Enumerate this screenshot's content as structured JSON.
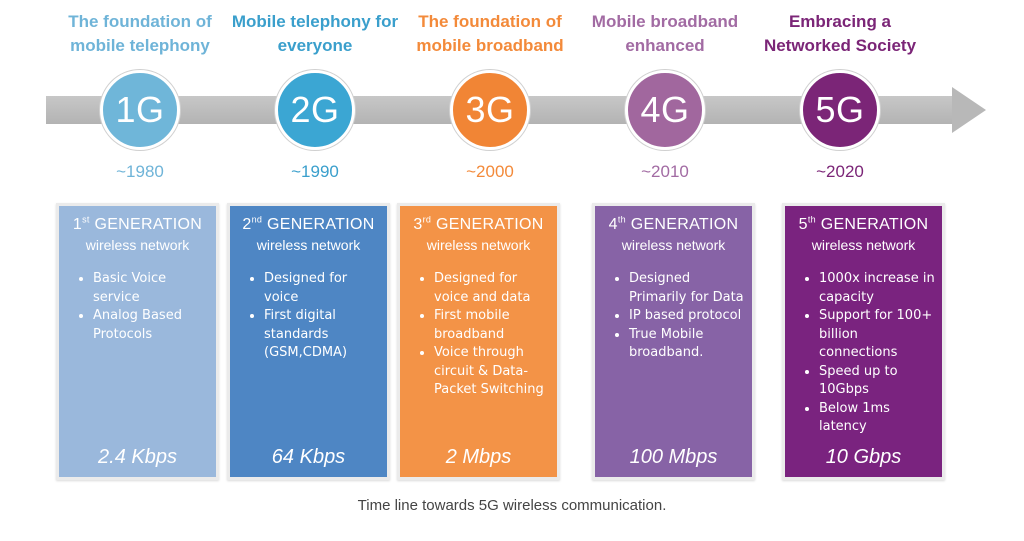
{
  "colors": {
    "g1": "#9ab8dc",
    "g2": "#4e86c4",
    "g3": "#f39347",
    "g4": "#8763a6",
    "g5": "#7a237f",
    "g1_circle": "#6fb6d9",
    "g2_circle": "#3ba6d3",
    "g3_circle": "#f18535",
    "g4_circle": "#a1679e",
    "g5_circle": "#7b2577",
    "g1_text": "#6fb4d8",
    "g2_text": "#3a9fcc",
    "g3_text": "#f38a3a",
    "g4_text": "#a26ba3",
    "g5_text": "#7b2577"
  },
  "generations": [
    {
      "tagline": "The foundation of mobile telephony",
      "label": "1G",
      "year": "~1980",
      "ordinal_num": "1",
      "ordinal_suffix": "st",
      "heading_word": "GENERATION",
      "subtitle": "wireless network",
      "features": [
        "Basic Voice service",
        "Analog Based Protocols"
      ],
      "speed": "2.4 Kbps"
    },
    {
      "tagline": "Mobile telephony for everyone",
      "label": "2G",
      "year": "~1990",
      "ordinal_num": "2",
      "ordinal_suffix": "nd",
      "heading_word": "GENERATION",
      "subtitle": "wireless network",
      "features": [
        "Designed for voice",
        "First digital standards (GSM,CDMA)"
      ],
      "speed": "64 Kbps"
    },
    {
      "tagline": "The foundation of mobile broadband",
      "label": "3G",
      "year": "~2000",
      "ordinal_num": "3",
      "ordinal_suffix": "rd",
      "heading_word": "GENERATION",
      "subtitle": "wireless network",
      "features": [
        "Designed for voice and data",
        "First mobile broadband",
        "Voice through circuit  & Data-Packet Switching"
      ],
      "speed": "2 Mbps"
    },
    {
      "tagline": "Mobile broadband enhanced",
      "label": "4G",
      "year": "~2010",
      "ordinal_num": "4",
      "ordinal_suffix": "th",
      "heading_word": "GENERATION",
      "subtitle": "wireless network",
      "features": [
        "Designed Primarily for Data",
        "IP based protocol",
        "True Mobile broadband."
      ],
      "speed": "100 Mbps"
    },
    {
      "tagline": "Embracing a Networked Society",
      "label": "5G",
      "year": "~2020",
      "ordinal_num": "5",
      "ordinal_suffix": "th",
      "heading_word": "GENERATION",
      "subtitle": "wireless network",
      "features": [
        "1000x increase in capacity",
        "Support for 100+ billion connections",
        "Speed up to 10Gbps",
        "Below 1ms latency"
      ],
      "speed": "10 Gbps"
    }
  ],
  "caption": "Time line towards 5G wireless communication."
}
